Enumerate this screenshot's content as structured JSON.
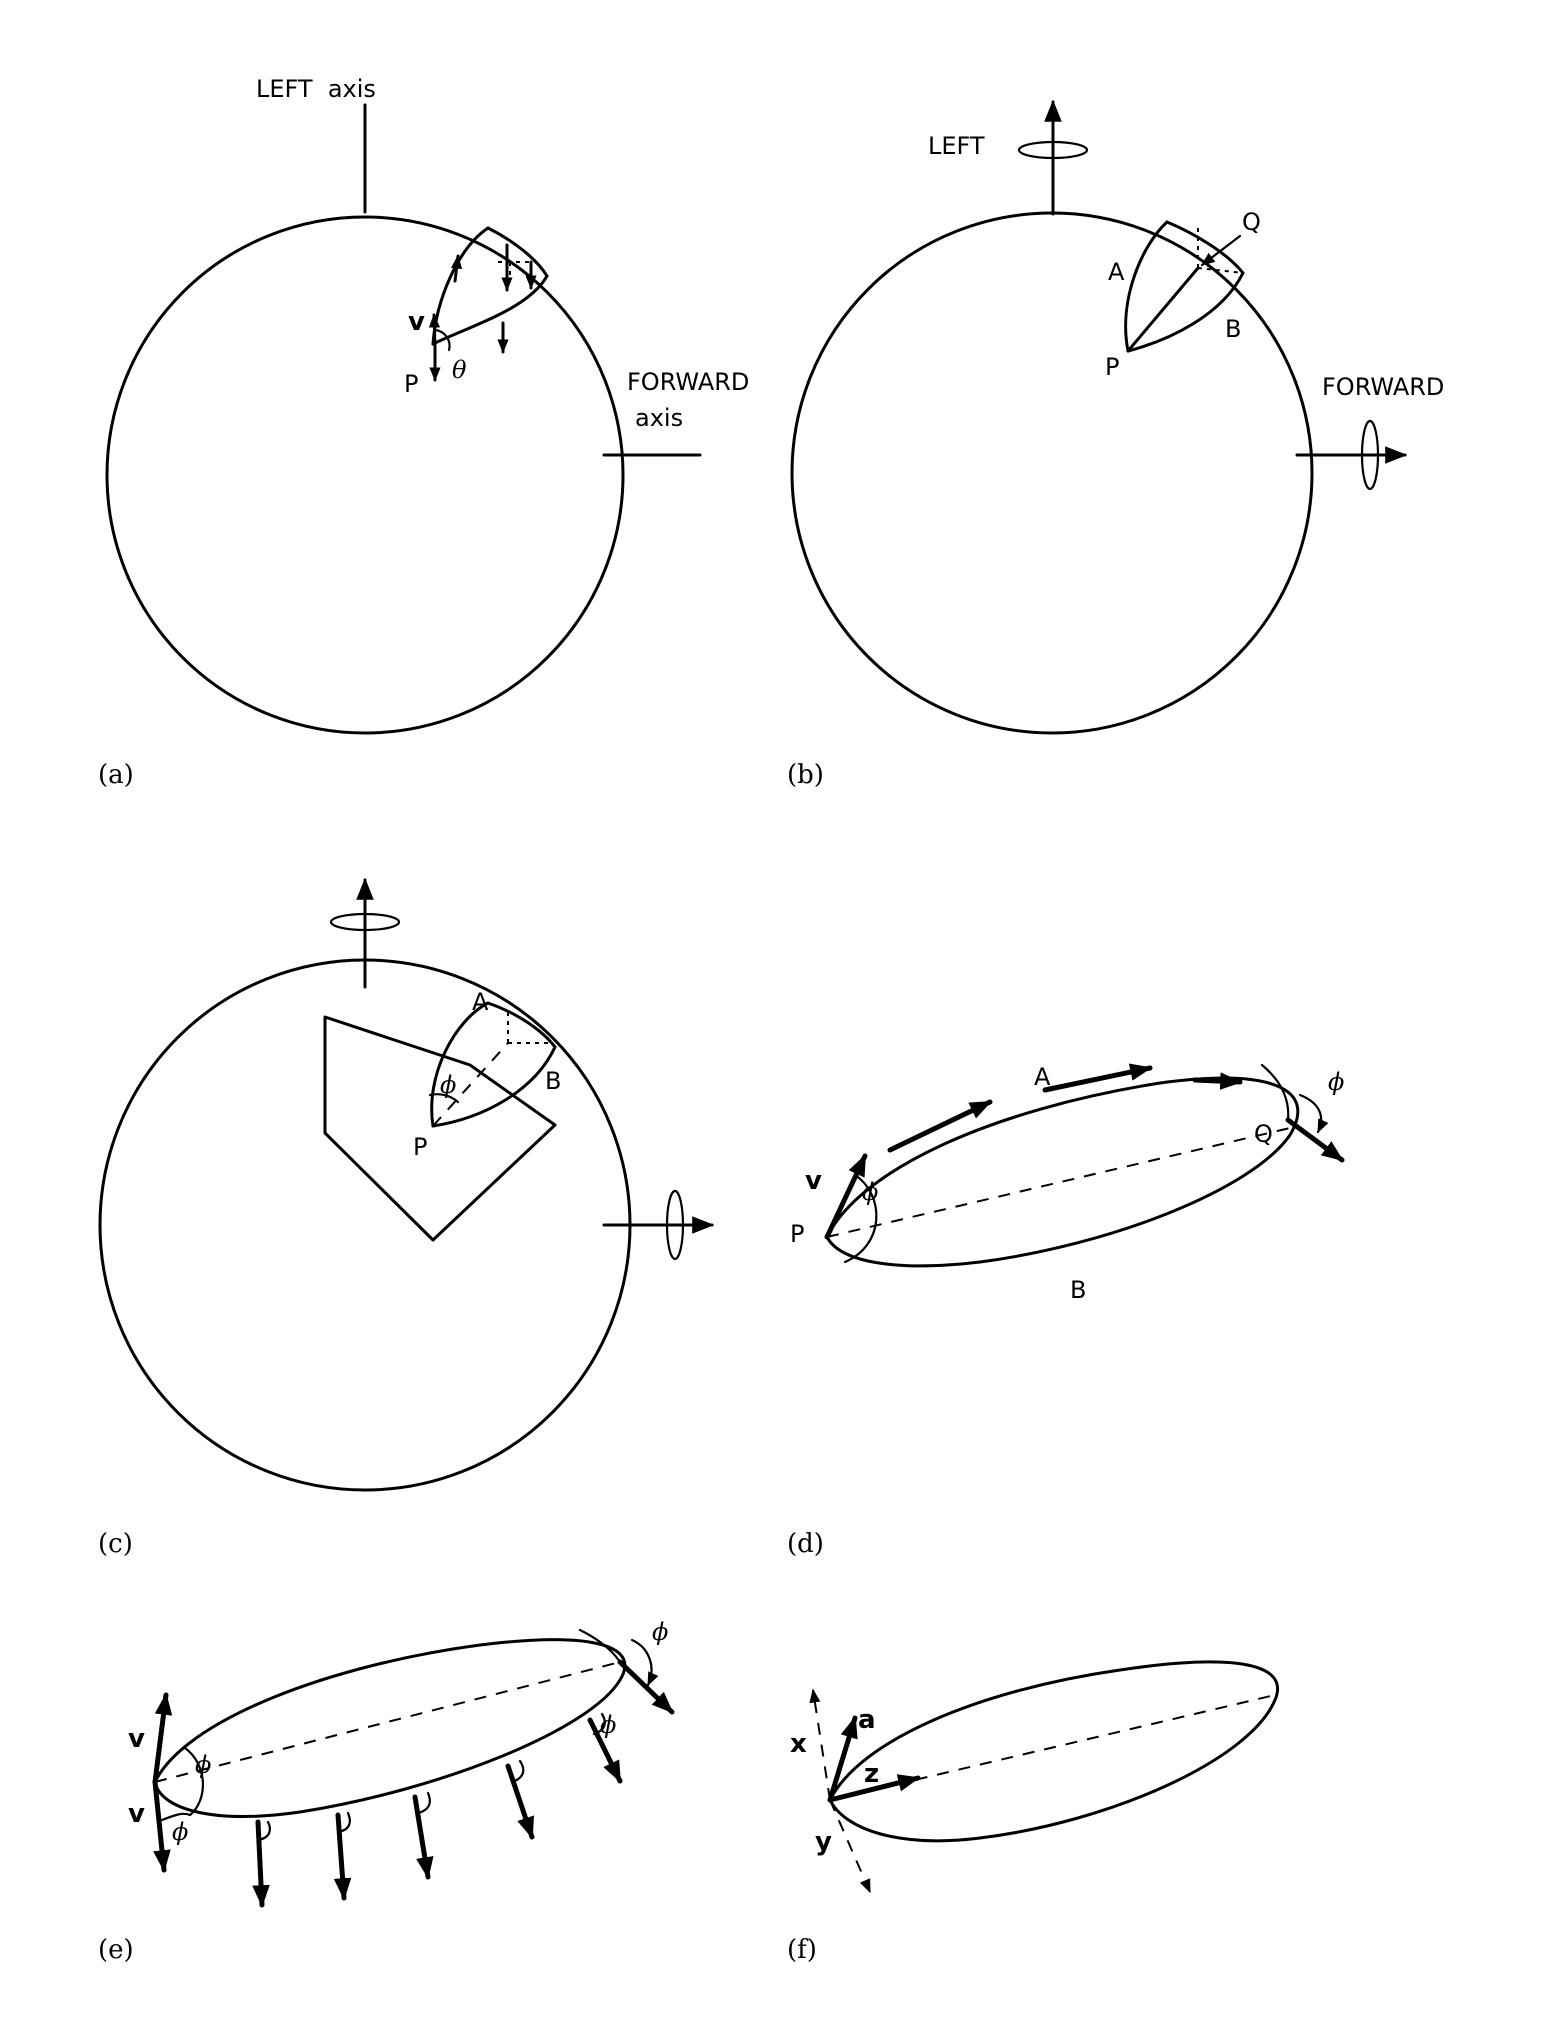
{
  "panels": {
    "a": {
      "tag": "(a)",
      "left_axis": "LEFT  axis",
      "forward_axis_1": "FORWARD",
      "forward_axis_2": "axis",
      "v": "v",
      "p": "P",
      "theta": "θ"
    },
    "b": {
      "tag": "(b)",
      "left": "LEFT",
      "forward": "FORWARD",
      "q": "Q",
      "a": "A",
      "b": "B",
      "p": "P"
    },
    "c": {
      "tag": "(c)",
      "a": "A",
      "b": "B",
      "phi": "ϕ",
      "p": "P"
    },
    "d": {
      "tag": "(d)",
      "a": "A",
      "b": "B",
      "q": "Q",
      "p": "P",
      "v": "v",
      "phi_p": "ϕ",
      "phi_q": "ϕ"
    },
    "e": {
      "tag": "(e)",
      "v_top": "v",
      "v_bot": "v",
      "phi_top": "ϕ",
      "phi_bot": "ϕ",
      "phi_q": "ϕ",
      "phi_side": "ϕ"
    },
    "f": {
      "tag": "(f)",
      "x": "x",
      "y": "y",
      "z": "z",
      "a": "a"
    }
  }
}
